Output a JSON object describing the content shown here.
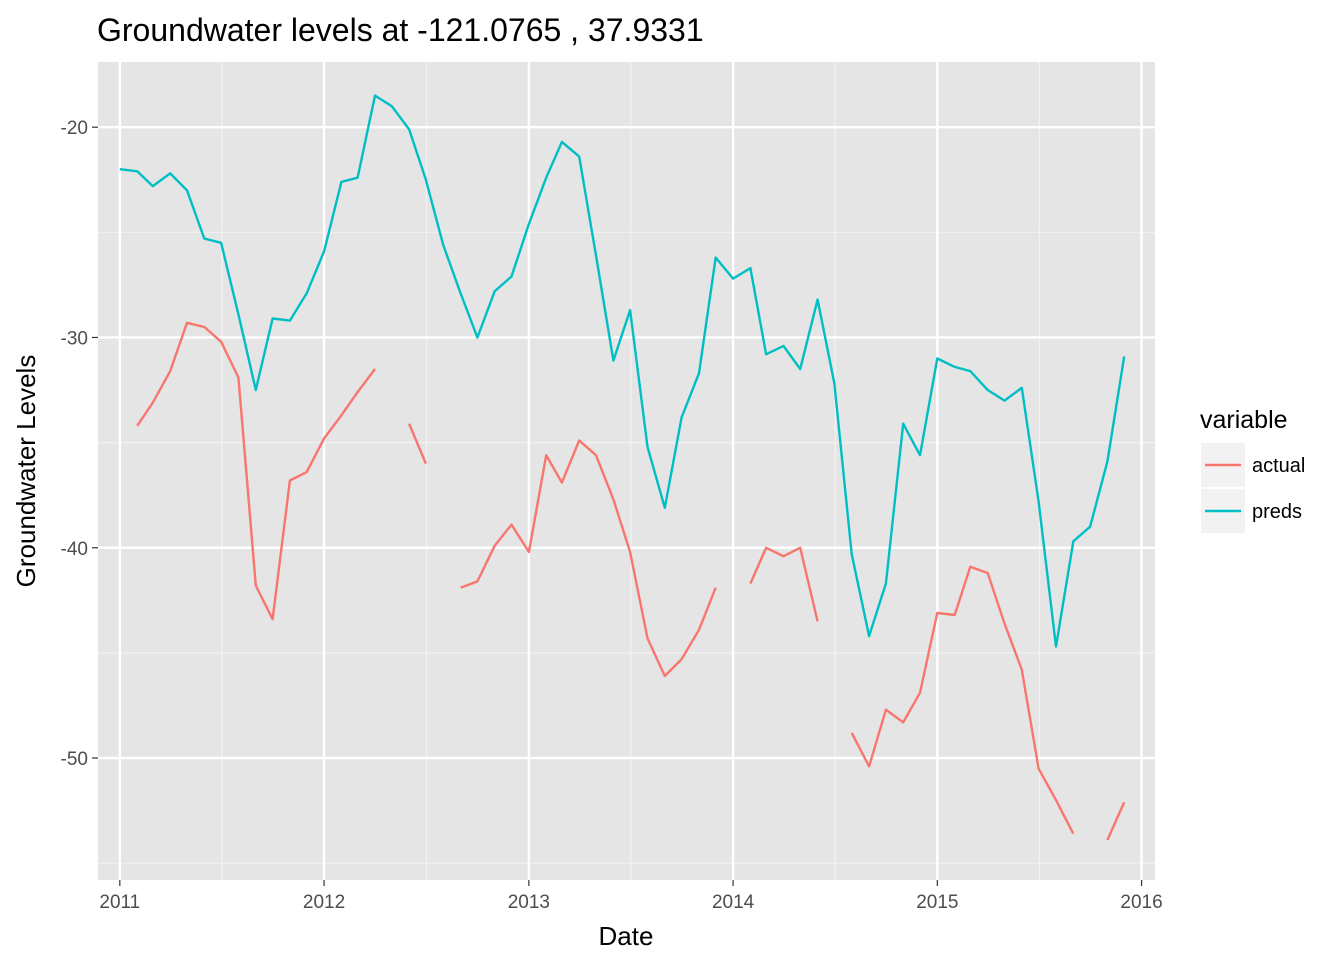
{
  "chart_data": {
    "type": "line",
    "title": "Groundwater levels at  -121.0765 , 37.9331",
    "xlabel": "Date",
    "ylabel": "Groundwater Levels",
    "x_type": "date",
    "xlim": [
      "2010-11-23",
      "2016-01-25"
    ],
    "ylim": [
      -55.8,
      -16.9
    ],
    "x_ticks": [
      {
        "label": "2011",
        "date": "2011-01-01"
      },
      {
        "label": "2012",
        "date": "2012-01-01"
      },
      {
        "label": "2013",
        "date": "2013-01-01"
      },
      {
        "label": "2014",
        "date": "2014-01-01"
      },
      {
        "label": "2015",
        "date": "2015-01-01"
      },
      {
        "label": "2016",
        "date": "2016-01-01"
      }
    ],
    "y_ticks": [
      -20,
      -30,
      -40,
      -50
    ],
    "grid": true,
    "panel_background": "#e5e5e5",
    "legend": {
      "title": "variable",
      "position": "right",
      "entries": [
        {
          "label": "actual",
          "color": "#f8766d"
        },
        {
          "label": "preds",
          "color": "#00bfc4"
        }
      ]
    },
    "dates": [
      "2011-01-01",
      "2011-02-01",
      "2011-03-01",
      "2011-04-01",
      "2011-05-01",
      "2011-06-01",
      "2011-07-01",
      "2011-08-01",
      "2011-09-01",
      "2011-10-01",
      "2011-11-01",
      "2011-12-01",
      "2012-01-01",
      "2012-02-01",
      "2012-03-01",
      "2012-04-01",
      "2012-05-01",
      "2012-06-01",
      "2012-07-01",
      "2012-08-01",
      "2012-09-01",
      "2012-10-01",
      "2012-11-01",
      "2012-12-01",
      "2013-01-01",
      "2013-02-01",
      "2013-03-01",
      "2013-04-01",
      "2013-05-01",
      "2013-06-01",
      "2013-07-01",
      "2013-08-01",
      "2013-09-01",
      "2013-10-01",
      "2013-11-01",
      "2013-12-01",
      "2014-01-01",
      "2014-02-01",
      "2014-03-01",
      "2014-04-01",
      "2014-05-01",
      "2014-06-01",
      "2014-07-01",
      "2014-08-01",
      "2014-09-01",
      "2014-10-01",
      "2014-11-01",
      "2014-12-01",
      "2015-01-01",
      "2015-02-01",
      "2015-03-01",
      "2015-04-01",
      "2015-05-01",
      "2015-06-01",
      "2015-07-01",
      "2015-08-01",
      "2015-09-01",
      "2015-10-01",
      "2015-11-01",
      "2015-12-01"
    ],
    "series": [
      {
        "name": "actual",
        "color": "#f8766d",
        "values": [
          null,
          -34.2,
          -33.1,
          -31.6,
          -29.3,
          -29.5,
          -30.2,
          -31.9,
          -41.8,
          -43.4,
          -36.8,
          -36.4,
          -34.8,
          -33.7,
          -32.6,
          -31.5,
          null,
          -34.1,
          -36.0,
          null,
          -41.9,
          -41.6,
          -39.9,
          -38.9,
          -40.2,
          -35.6,
          -36.9,
          -34.9,
          -35.6,
          -37.7,
          -40.2,
          -44.3,
          -46.1,
          -45.3,
          -43.9,
          -41.9,
          null,
          -41.7,
          -40.0,
          -40.4,
          -40.0,
          -43.5,
          null,
          -48.8,
          -50.4,
          -47.7,
          -48.3,
          -46.9,
          -43.1,
          -43.2,
          -40.9,
          -41.2,
          -43.6,
          -45.8,
          -50.5,
          -52.0,
          -53.6,
          null,
          -53.9,
          -52.1
        ]
      },
      {
        "name": "preds",
        "color": "#00bfc4",
        "values": [
          -22.0,
          -22.1,
          -22.8,
          -22.2,
          -23.0,
          -25.3,
          -25.5,
          -28.9,
          -32.5,
          -29.1,
          -29.2,
          -27.9,
          -25.9,
          -22.6,
          -22.4,
          -18.5,
          -19.0,
          -20.1,
          -22.5,
          -25.6,
          -27.9,
          -30.0,
          -27.8,
          -27.1,
          -24.6,
          -22.4,
          -20.7,
          -21.4,
          -26.1,
          -31.1,
          -28.7,
          -35.2,
          -38.1,
          -33.8,
          -31.7,
          -26.2,
          -27.2,
          -26.7,
          -30.8,
          -30.4,
          -31.5,
          -28.2,
          -32.2,
          -40.3,
          -44.2,
          -41.7,
          -34.1,
          -35.6,
          -31.0,
          -31.4,
          -31.6,
          -32.5,
          -33.0,
          -32.4,
          -37.8,
          -44.7,
          -39.7,
          -39.0,
          -35.9,
          -30.9
        ]
      }
    ]
  }
}
